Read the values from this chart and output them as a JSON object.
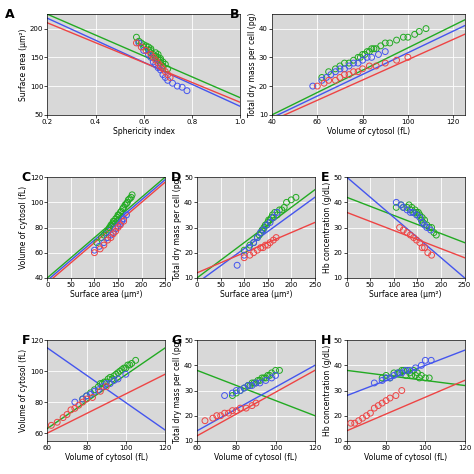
{
  "background_color": "#d8d8d8",
  "colors": {
    "green": "#22aa22",
    "blue": "#4455ee",
    "red": "#ee4444"
  },
  "marker_size": 18,
  "marker_lw": 0.7,
  "line_lw": 1.0,
  "panels": [
    {
      "label": "A",
      "xlabel": "Sphericity index",
      "ylabel": "Surface area (μm²)",
      "xlim": [
        0.2,
        1.0
      ],
      "ylim": [
        50,
        225
      ],
      "xticks": [
        0.2,
        0.4,
        0.6,
        0.8,
        1.0
      ],
      "yticks": [
        50,
        100,
        150,
        200
      ],
      "data": {
        "green_x": [
          0.57,
          0.58,
          0.59,
          0.6,
          0.6,
          0.61,
          0.62,
          0.62,
          0.63,
          0.63,
          0.63,
          0.64,
          0.65,
          0.65,
          0.65,
          0.66,
          0.66,
          0.66,
          0.67,
          0.67,
          0.67,
          0.68,
          0.68,
          0.69,
          0.7
        ],
        "green_y": [
          185,
          178,
          175,
          172,
          168,
          170,
          163,
          168,
          162,
          158,
          165,
          155,
          152,
          158,
          148,
          155,
          145,
          150,
          145,
          148,
          140,
          142,
          135,
          138,
          130
        ],
        "blue_x": [
          0.58,
          0.6,
          0.62,
          0.63,
          0.64,
          0.65,
          0.66,
          0.67,
          0.68,
          0.69,
          0.7,
          0.72,
          0.74,
          0.76,
          0.78
        ],
        "blue_y": [
          175,
          162,
          155,
          150,
          142,
          138,
          132,
          128,
          120,
          115,
          110,
          105,
          100,
          98,
          92
        ],
        "red_x": [
          0.57,
          0.59,
          0.61,
          0.63,
          0.64,
          0.65,
          0.66,
          0.67,
          0.68,
          0.69,
          0.7,
          0.71
        ],
        "red_y": [
          175,
          168,
          162,
          155,
          150,
          145,
          140,
          135,
          130,
          125,
          120,
          115
        ],
        "green_trend_x": [
          0.2,
          1.0
        ],
        "green_trend_y": [
          225,
          80
        ],
        "blue_trend_x": [
          0.2,
          1.0
        ],
        "blue_trend_y": [
          218,
          65
        ],
        "red_trend_x": [
          0.2,
          1.0
        ],
        "red_trend_y": [
          210,
          72
        ]
      }
    },
    {
      "label": "B",
      "xlabel": "Volume of cytosol (fL)",
      "ylabel": "Total dry mass per cell (pg)",
      "xlim": [
        40,
        125
      ],
      "ylim": [
        10,
        45
      ],
      "xticks": [
        40,
        60,
        80,
        100,
        120
      ],
      "yticks": [
        10,
        20,
        30,
        40
      ],
      "data": {
        "green_x": [
          62,
          65,
          68,
          70,
          72,
          74,
          76,
          78,
          79,
          80,
          81,
          82,
          83,
          84,
          85,
          86,
          88,
          90,
          92,
          95,
          98,
          100,
          103,
          105,
          108
        ],
        "green_y": [
          23,
          25,
          26,
          27,
          28,
          28,
          29,
          30,
          30,
          31,
          31,
          32,
          32,
          33,
          33,
          33,
          34,
          35,
          35,
          36,
          37,
          37,
          38,
          39,
          40
        ],
        "blue_x": [
          58,
          62,
          64,
          66,
          68,
          70,
          72,
          74,
          76,
          78,
          80,
          82,
          84,
          87,
          90
        ],
        "blue_y": [
          20,
          22,
          23,
          24,
          25,
          26,
          26,
          27,
          28,
          28,
          29,
          30,
          30,
          31,
          32
        ],
        "red_x": [
          60,
          63,
          65,
          68,
          70,
          72,
          74,
          76,
          78,
          80,
          83,
          86,
          90,
          95,
          100
        ],
        "red_y": [
          20,
          21,
          22,
          22,
          23,
          24,
          24,
          25,
          25,
          26,
          27,
          27,
          28,
          29,
          30
        ],
        "green_trend_x": [
          40,
          125
        ],
        "green_trend_y": [
          10,
          43
        ],
        "blue_trend_x": [
          40,
          125
        ],
        "blue_trend_y": [
          9,
          41
        ],
        "red_trend_x": [
          40,
          125
        ],
        "red_trend_y": [
          8,
          38
        ]
      }
    },
    {
      "label": "C",
      "xlabel": "Surface area (μm²)",
      "ylabel": "Volume of cytosol (fL)",
      "xlim": [
        0,
        250
      ],
      "ylim": [
        40,
        120
      ],
      "xticks": [
        0,
        50,
        100,
        150,
        200,
        250
      ],
      "yticks": [
        40,
        60,
        80,
        100,
        120
      ],
      "data": {
        "green_x": [
          105,
          115,
          120,
          125,
          130,
          132,
          135,
          138,
          140,
          142,
          145,
          148,
          150,
          152,
          155,
          157,
          160,
          162,
          165,
          168,
          170,
          172,
          175,
          178,
          180
        ],
        "green_y": [
          68,
          72,
          74,
          76,
          78,
          80,
          82,
          83,
          85,
          85,
          87,
          88,
          90,
          90,
          92,
          93,
          95,
          96,
          98,
          99,
          100,
          102,
          103,
          104,
          106
        ],
        "blue_x": [
          100,
          110,
          120,
          128,
          135,
          140,
          145,
          150,
          155,
          158,
          162,
          168
        ],
        "blue_y": [
          62,
          65,
          68,
          72,
          74,
          76,
          79,
          81,
          83,
          85,
          87,
          90
        ],
        "red_x": [
          100,
          112,
          120,
          128,
          135,
          140,
          145,
          150,
          155,
          162
        ],
        "red_y": [
          60,
          63,
          66,
          70,
          72,
          75,
          77,
          80,
          82,
          85
        ],
        "green_trend_x": [
          0,
          250
        ],
        "green_trend_y": [
          40,
          120
        ],
        "blue_trend_x": [
          0,
          250
        ],
        "blue_trend_y": [
          38,
          118
        ],
        "red_trend_x": [
          0,
          250
        ],
        "red_trend_y": [
          36,
          116
        ]
      }
    },
    {
      "label": "D",
      "xlabel": "Surface area (μm²)",
      "ylabel": "Total dry mass per cell (pg)",
      "xlim": [
        0,
        250
      ],
      "ylim": [
        10,
        50
      ],
      "xticks": [
        0,
        50,
        100,
        150,
        200,
        250
      ],
      "yticks": [
        10,
        20,
        30,
        40,
        50
      ],
      "data": {
        "green_x": [
          100,
          112,
          120,
          128,
          132,
          135,
          138,
          140,
          142,
          145,
          148,
          150,
          152,
          155,
          158,
          160,
          162,
          165,
          170,
          175,
          180,
          185,
          190,
          200,
          210
        ],
        "green_y": [
          21,
          23,
          24,
          26,
          27,
          28,
          29,
          29,
          30,
          31,
          31,
          32,
          33,
          33,
          34,
          35,
          34,
          36,
          35,
          37,
          37,
          38,
          40,
          41,
          42
        ],
        "blue_x": [
          85,
          100,
          110,
          120,
          128,
          135,
          140,
          148,
          155,
          162,
          170
        ],
        "blue_y": [
          15,
          19,
          22,
          24,
          26,
          28,
          29,
          31,
          32,
          34,
          36
        ],
        "red_x": [
          100,
          112,
          120,
          128,
          135,
          140,
          145,
          150,
          155,
          162,
          168
        ],
        "red_y": [
          18,
          19,
          20,
          21,
          22,
          22,
          23,
          23,
          24,
          25,
          26
        ],
        "green_trend_x": [
          0,
          250
        ],
        "green_trend_y": [
          10,
          45
        ],
        "blue_trend_x": [
          0,
          250
        ],
        "blue_trend_y": [
          8,
          42
        ],
        "red_trend_x": [
          0,
          250
        ],
        "red_trend_y": [
          12,
          32
        ]
      }
    },
    {
      "label": "E",
      "xlabel": "Surface area (μm²)",
      "ylabel": "Hb concentration (g/dL)",
      "xlim": [
        0,
        250
      ],
      "ylim": [
        10,
        50
      ],
      "xticks": [
        0,
        50,
        100,
        150,
        200,
        250
      ],
      "yticks": [
        10,
        20,
        30,
        40,
        50
      ],
      "data": {
        "green_x": [
          105,
          115,
          120,
          128,
          132,
          135,
          138,
          142,
          145,
          148,
          150,
          152,
          155,
          158,
          160,
          162,
          165,
          170,
          175,
          180,
          185,
          190
        ],
        "green_y": [
          38,
          39,
          38,
          38,
          39,
          37,
          38,
          36,
          37,
          36,
          35,
          36,
          35,
          33,
          34,
          32,
          33,
          31,
          30,
          30,
          28,
          27
        ],
        "blue_x": [
          105,
          115,
          120,
          128,
          135,
          140,
          148,
          155,
          160,
          165,
          170,
          178
        ],
        "blue_y": [
          40,
          39,
          38,
          37,
          36,
          36,
          35,
          34,
          32,
          31,
          30,
          29
        ],
        "red_x": [
          112,
          120,
          128,
          135,
          142,
          148,
          155,
          160,
          165,
          172,
          180
        ],
        "red_y": [
          30,
          29,
          28,
          27,
          26,
          25,
          24,
          22,
          22,
          20,
          19
        ],
        "green_trend_x": [
          0,
          250
        ],
        "green_trend_y": [
          42,
          24
        ],
        "blue_trend_x": [
          0,
          250
        ],
        "blue_trend_y": [
          50,
          10
        ],
        "red_trend_x": [
          0,
          250
        ],
        "red_trend_y": [
          36,
          18
        ]
      }
    },
    {
      "label": "F",
      "xlabel": "Volume of cytosol (fL)",
      "ylabel": "Volume of cytosol (fL)",
      "xlim": [
        60,
        120
      ],
      "ylim": [
        55,
        120
      ],
      "xticks": [
        60,
        80,
        100,
        120
      ],
      "yticks": [
        60,
        80,
        100,
        120
      ],
      "data": {
        "green_x": [
          78,
          80,
          82,
          84,
          86,
          87,
          88,
          89,
          90,
          91,
          92,
          93,
          94,
          95,
          96,
          97,
          98,
          99,
          100,
          101,
          102,
          103,
          105
        ],
        "green_y": [
          82,
          84,
          86,
          88,
          90,
          92,
          92,
          93,
          93,
          95,
          96,
          95,
          97,
          98,
          99,
          100,
          101,
          102,
          102,
          104,
          104,
          105,
          107
        ],
        "blue_x": [
          74,
          78,
          80,
          82,
          84,
          86,
          88,
          90,
          92,
          94,
          96,
          100
        ],
        "blue_y": [
          80,
          82,
          84,
          85,
          87,
          88,
          90,
          92,
          92,
          94,
          95,
          98
        ],
        "red_x": [
          62,
          65,
          68,
          70,
          72,
          74,
          76,
          78,
          80,
          83,
          87,
          90
        ],
        "red_y": [
          65,
          67,
          70,
          72,
          75,
          76,
          78,
          80,
          82,
          83,
          87,
          90
        ],
        "green_trend_x": [
          60,
          120
        ],
        "green_trend_y": [
          63,
          115
        ],
        "blue_trend_x": [
          60,
          120
        ],
        "blue_trend_y": [
          115,
          62
        ],
        "red_trend_x": [
          60,
          120
        ],
        "red_trend_y": [
          60,
          98
        ]
      }
    },
    {
      "label": "G",
      "xlabel": "Volume of cytosol (fL)",
      "ylabel": "Total dry mass per cell (pg)",
      "xlim": [
        60,
        120
      ],
      "ylim": [
        10,
        50
      ],
      "xticks": [
        60,
        80,
        100,
        120
      ],
      "yticks": [
        10,
        20,
        30,
        40,
        50
      ],
      "data": {
        "green_x": [
          78,
          80,
          82,
          84,
          86,
          87,
          88,
          89,
          90,
          91,
          92,
          93,
          94,
          95,
          96,
          97,
          98,
          100,
          102
        ],
        "green_y": [
          28,
          29,
          30,
          31,
          32,
          32,
          33,
          33,
          33,
          34,
          34,
          35,
          35,
          35,
          36,
          36,
          37,
          38,
          38
        ],
        "blue_x": [
          74,
          78,
          80,
          82,
          84,
          86,
          88,
          90,
          92,
          95,
          98,
          100
        ],
        "blue_y": [
          28,
          29,
          30,
          30,
          31,
          32,
          32,
          33,
          33,
          34,
          35,
          36
        ],
        "red_x": [
          64,
          68,
          70,
          72,
          74,
          76,
          78,
          80,
          82,
          85,
          88,
          90
        ],
        "red_y": [
          18,
          19,
          20,
          20,
          21,
          21,
          22,
          22,
          23,
          23,
          24,
          25
        ],
        "green_trend_x": [
          60,
          120
        ],
        "green_trend_y": [
          38,
          20
        ],
        "blue_trend_x": [
          60,
          120
        ],
        "blue_trend_y": [
          14,
          40
        ],
        "red_trend_x": [
          60,
          120
        ],
        "red_trend_y": [
          12,
          38
        ]
      }
    },
    {
      "label": "H",
      "xlabel": "Volume of cytosol (fL)",
      "ylabel": "Hb concentration (g/dL)",
      "xlim": [
        60,
        120
      ],
      "ylim": [
        10,
        50
      ],
      "xticks": [
        60,
        80,
        100,
        120
      ],
      "yticks": [
        10,
        20,
        30,
        40,
        50
      ],
      "data": {
        "green_x": [
          78,
          80,
          82,
          84,
          86,
          87,
          88,
          89,
          90,
          91,
          92,
          93,
          94,
          95,
          96,
          97,
          98,
          100,
          102
        ],
        "green_y": [
          35,
          36,
          35,
          37,
          37,
          37,
          38,
          38,
          36,
          38,
          37,
          36,
          38,
          36,
          37,
          35,
          36,
          35,
          35
        ],
        "blue_x": [
          74,
          78,
          80,
          82,
          84,
          86,
          88,
          90,
          92,
          95,
          98,
          100,
          103
        ],
        "blue_y": [
          33,
          34,
          35,
          35,
          36,
          37,
          37,
          38,
          38,
          39,
          40,
          42,
          42
        ],
        "red_x": [
          62,
          64,
          66,
          68,
          70,
          72,
          74,
          76,
          78,
          80,
          82,
          85,
          88
        ],
        "red_y": [
          17,
          17,
          18,
          19,
          20,
          21,
          23,
          24,
          25,
          26,
          27,
          28,
          30
        ],
        "green_trend_x": [
          60,
          120
        ],
        "green_trend_y": [
          38,
          32
        ],
        "blue_trend_x": [
          60,
          120
        ],
        "blue_trend_y": [
          28,
          46
        ],
        "red_trend_x": [
          60,
          120
        ],
        "red_trend_y": [
          14,
          34
        ]
      }
    }
  ]
}
